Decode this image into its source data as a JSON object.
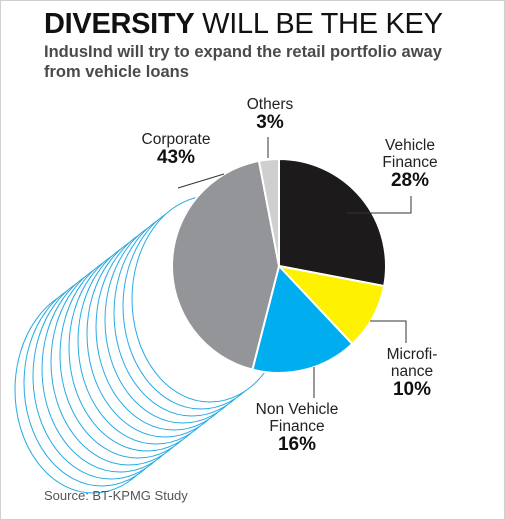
{
  "title_bold": "DIVERSITY",
  "title_rest": "WILL BE THE KEY",
  "subtitle": "IndusInd will try to expand the retail portfolio away from vehicle loans",
  "source": "Source: BT-KPMG Study",
  "chart_data": {
    "type": "pie",
    "slices": [
      {
        "label_lines": [
          "Vehicle",
          "Finance"
        ],
        "value": 28,
        "value_label": "28%",
        "color": "#1c1a1b"
      },
      {
        "label_lines": [
          "Microfi-",
          "nance"
        ],
        "value": 10,
        "value_label": "10%",
        "color": "#fff200"
      },
      {
        "label_lines": [
          "Non Vehicle",
          "Finance"
        ],
        "value": 16,
        "value_label": "16%",
        "color": "#00aeef"
      },
      {
        "label_lines": [
          "Corporate"
        ],
        "value": 43,
        "value_label": "43%",
        "color": "#939598"
      },
      {
        "label_lines": [
          "Others"
        ],
        "value": 3,
        "value_label": "3%",
        "color": "#cfcfcf"
      }
    ],
    "decoration_color": "#29abe2"
  }
}
